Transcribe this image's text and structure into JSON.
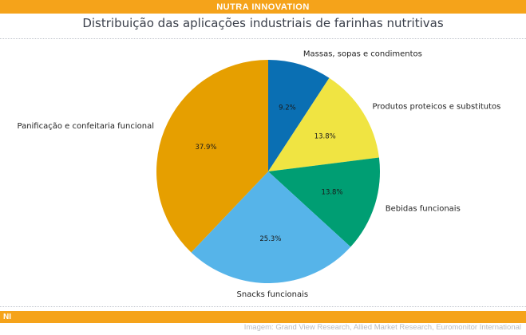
{
  "header": {
    "brand": "NUTRA INNOVATION"
  },
  "footer": {
    "logo": "NI",
    "credit": "Imagem: Grand View Research, Allied Market Research, Euromonitor International"
  },
  "chart_data": {
    "type": "pie",
    "title": "Distribuição das aplicações industriais de farinhas nutritivas",
    "start_angle_deg": 90,
    "direction": "clockwise",
    "slices": [
      {
        "label": "Massas, sopas e condimentos",
        "value": 9.2,
        "pct_label": "9.2%",
        "color": "#0a6fb3"
      },
      {
        "label": "Produtos proteicos e substitutos",
        "value": 13.8,
        "pct_label": "13.8%",
        "color": "#f0e442"
      },
      {
        "label": "Bebidas funcionais",
        "value": 13.8,
        "pct_label": "13.8%",
        "color": "#009e73"
      },
      {
        "label": "Snacks funcionais",
        "value": 25.3,
        "pct_label": "25.3%",
        "color": "#56b4e9"
      },
      {
        "label": "Panificação e confeitaria funcional",
        "value": 37.9,
        "pct_label": "37.9%",
        "color": "#e69f00"
      }
    ]
  }
}
